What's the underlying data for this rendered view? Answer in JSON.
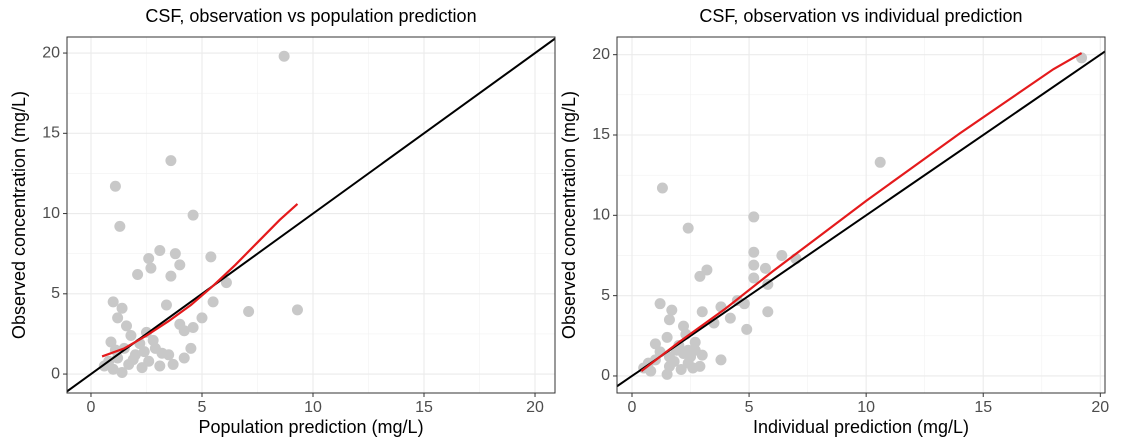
{
  "chart_data": [
    {
      "type": "scatter",
      "title": "CSF, observation vs population prediction",
      "x_label": "Population prediction (mg/L)",
      "y_label": "Observed concentration (mg/L)",
      "xlim": [
        -1.08,
        20.9
      ],
      "ylim": [
        -1.18,
        21.0
      ],
      "xticks": [
        0,
        5,
        10,
        15,
        20
      ],
      "yticks": [
        0,
        5,
        10,
        15,
        20
      ],
      "grid": true,
      "point_color": "#c8c8c8",
      "x": [
        8.7,
        3.6,
        1.1,
        1.3,
        4.6,
        3.1,
        3.8,
        4.0,
        2.6,
        2.7,
        5.4,
        2.1,
        3.6,
        6.1,
        5.5,
        7.1,
        9.3,
        1.0,
        1.4,
        3.4,
        5.0,
        1.2,
        1.6,
        4.0,
        4.2,
        4.6,
        2.5,
        2.8,
        1.8,
        0.9,
        2.2,
        3.2,
        1.5,
        4.2,
        3.5,
        2.0,
        1.2,
        0.8,
        2.6,
        3.1,
        1.7,
        1.0,
        0.6,
        2.3,
        1.4,
        3.7,
        2.9,
        1.9,
        2.4,
        1.1,
        4.5
      ],
      "y": [
        19.8,
        13.3,
        11.7,
        9.2,
        9.9,
        7.7,
        7.5,
        6.8,
        7.2,
        6.6,
        7.3,
        6.2,
        6.1,
        5.7,
        4.5,
        3.9,
        4.0,
        4.5,
        4.1,
        4.3,
        3.5,
        3.5,
        3.0,
        3.1,
        2.7,
        2.9,
        2.6,
        2.1,
        2.4,
        2.0,
        1.9,
        1.3,
        1.6,
        1.0,
        1.2,
        1.2,
        1.0,
        0.8,
        0.8,
        0.5,
        0.6,
        0.3,
        0.5,
        0.4,
        0.1,
        0.6,
        1.6,
        0.9,
        1.4,
        1.5,
        1.6
      ],
      "smooth": {
        "color": "#e41a1c",
        "x": [
          0.5,
          1.5,
          2.5,
          3.5,
          4.5,
          5.5,
          6.5,
          7.5,
          8.5,
          9.3
        ],
        "y": [
          1.1,
          1.6,
          2.4,
          3.3,
          4.3,
          5.5,
          6.8,
          8.2,
          9.6,
          10.6
        ]
      }
    },
    {
      "type": "scatter",
      "title": "CSF, observation vs individual prediction",
      "x_label": "Individual prediction (mg/L)",
      "y_label": "Observed concentration (mg/L)",
      "xlim": [
        -0.64,
        20.2
      ],
      "ylim": [
        -1.06,
        21.1
      ],
      "xticks": [
        0,
        5,
        10,
        15,
        20
      ],
      "yticks": [
        0,
        5,
        10,
        15,
        20
      ],
      "grid": true,
      "point_color": "#c8c8c8",
      "x": [
        19.2,
        10.6,
        1.3,
        2.4,
        5.2,
        5.2,
        6.4,
        5.2,
        5.7,
        3.2,
        7.0,
        2.9,
        5.2,
        5.8,
        5.8,
        4.5,
        4.8,
        1.2,
        1.7,
        3.8,
        3.0,
        1.6,
        4.2,
        2.2,
        3.5,
        4.9,
        2.3,
        2.7,
        1.5,
        1.0,
        2.0,
        3.0,
        1.9,
        3.8,
        2.5,
        1.6,
        1.0,
        0.7,
        2.4,
        2.6,
        1.6,
        0.8,
        0.5,
        2.1,
        1.5,
        2.9,
        2.7,
        1.8,
        2.2,
        1.2,
        2.4
      ],
      "y": [
        19.8,
        13.3,
        11.7,
        9.2,
        9.9,
        7.7,
        7.5,
        6.9,
        6.7,
        6.6,
        7.3,
        6.2,
        6.1,
        5.7,
        4.0,
        4.7,
        4.5,
        4.5,
        4.1,
        4.3,
        4.0,
        3.5,
        3.6,
        3.1,
        3.3,
        2.9,
        2.6,
        2.1,
        2.4,
        2.0,
        1.9,
        1.3,
        1.6,
        1.0,
        1.2,
        1.2,
        1.0,
        0.8,
        0.8,
        0.5,
        0.6,
        0.3,
        0.5,
        0.4,
        0.1,
        0.6,
        1.6,
        0.9,
        1.4,
        1.5,
        1.6
      ],
      "smooth": {
        "color": "#e41a1c",
        "x": [
          0.4,
          2,
          4,
          6,
          8,
          10,
          12,
          14,
          16,
          18,
          19.2
        ],
        "y": [
          0.3,
          2.1,
          4.2,
          6.5,
          8.7,
          10.9,
          13.0,
          15.1,
          17.1,
          19.1,
          20.1
        ]
      }
    }
  ]
}
